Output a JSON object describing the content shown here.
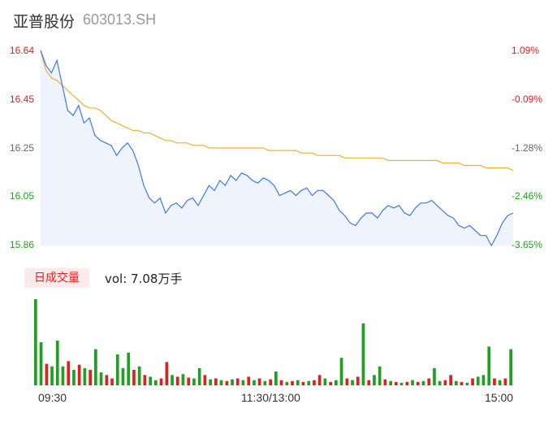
{
  "header": {
    "name": "亚普股份",
    "code": "603013.SH"
  },
  "badge_label": "日成交量",
  "volume_label": "vol: 7.08万手",
  "colors": {
    "price_line": "#3c78e6",
    "avg_line": "#f0b030",
    "up": "#e02020",
    "down": "#20a020"
  },
  "chart_data": {
    "type": "line",
    "y_ticks_left": [
      "16.64",
      "16.45",
      "16.25",
      "16.05",
      "15.86"
    ],
    "y_ticks_right": [
      "1.09%",
      "-0.09%",
      "-1.28%",
      "-2.46%",
      "-3.65%"
    ],
    "ylim": [
      15.86,
      16.64
    ],
    "x_ticks": [
      "09:30",
      "11:30/13:00",
      "15:00"
    ],
    "series": [
      {
        "key": "price",
        "values": [
          16.64,
          16.58,
          16.55,
          16.6,
          16.5,
          16.4,
          16.38,
          16.42,
          16.35,
          16.37,
          16.3,
          16.28,
          16.27,
          16.26,
          16.22,
          16.25,
          16.27,
          16.24,
          16.18,
          16.1,
          16.05,
          16.03,
          16.05,
          15.99,
          16.02,
          16.03,
          16.01,
          16.04,
          16.05,
          16.02,
          16.06,
          16.1,
          16.08,
          16.12,
          16.1,
          16.14,
          16.12,
          16.15,
          16.14,
          16.12,
          16.11,
          16.13,
          16.12,
          16.1,
          16.06,
          16.07,
          16.08,
          16.06,
          16.08,
          16.09,
          16.06,
          16.08,
          16.08,
          16.06,
          16.04,
          16.0,
          15.98,
          15.95,
          15.94,
          15.97,
          15.99,
          15.99,
          15.97,
          16.0,
          16.02,
          16.01,
          16.02,
          15.99,
          15.98,
          16.01,
          16.03,
          16.03,
          16.04,
          16.02,
          16.0,
          15.98,
          15.97,
          15.94,
          15.93,
          15.94,
          15.92,
          15.9,
          15.9,
          15.86,
          15.9,
          15.95,
          15.98,
          15.99
        ]
      },
      {
        "key": "average",
        "values": [
          16.64,
          16.56,
          16.53,
          16.52,
          16.5,
          16.48,
          16.46,
          16.44,
          16.42,
          16.41,
          16.41,
          16.4,
          16.38,
          16.36,
          16.35,
          16.34,
          16.33,
          16.32,
          16.32,
          16.31,
          16.31,
          16.3,
          16.29,
          16.28,
          16.28,
          16.27,
          16.27,
          16.27,
          16.26,
          16.26,
          16.26,
          16.25,
          16.25,
          16.25,
          16.25,
          16.25,
          16.25,
          16.25,
          16.25,
          16.25,
          16.25,
          16.25,
          16.24,
          16.24,
          16.24,
          16.24,
          16.24,
          16.24,
          16.23,
          16.23,
          16.23,
          16.22,
          16.22,
          16.22,
          16.22,
          16.22,
          16.21,
          16.21,
          16.21,
          16.21,
          16.21,
          16.21,
          16.21,
          16.21,
          16.2,
          16.2,
          16.2,
          16.2,
          16.2,
          16.2,
          16.2,
          16.2,
          16.2,
          16.2,
          16.19,
          16.19,
          16.19,
          16.19,
          16.18,
          16.18,
          16.18,
          16.18,
          16.17,
          16.17,
          16.17,
          16.17,
          16.17,
          16.16
        ]
      }
    ],
    "volume_bars": [
      {
        "v": 100,
        "d": "down"
      },
      {
        "v": 50,
        "d": "down"
      },
      {
        "v": 25,
        "d": "up"
      },
      {
        "v": 22,
        "d": "down"
      },
      {
        "v": 52,
        "d": "down"
      },
      {
        "v": 22,
        "d": "down"
      },
      {
        "v": 28,
        "d": "up"
      },
      {
        "v": 18,
        "d": "down"
      },
      {
        "v": 24,
        "d": "up"
      },
      {
        "v": 20,
        "d": "down"
      },
      {
        "v": 18,
        "d": "up"
      },
      {
        "v": 42,
        "d": "down"
      },
      {
        "v": 15,
        "d": "down"
      },
      {
        "v": 12,
        "d": "up"
      },
      {
        "v": 8,
        "d": "up"
      },
      {
        "v": 36,
        "d": "down"
      },
      {
        "v": 20,
        "d": "down"
      },
      {
        "v": 38,
        "d": "down"
      },
      {
        "v": 18,
        "d": "up"
      },
      {
        "v": 22,
        "d": "down"
      },
      {
        "v": 12,
        "d": "up"
      },
      {
        "v": 10,
        "d": "down"
      },
      {
        "v": 6,
        "d": "down"
      },
      {
        "v": 8,
        "d": "up"
      },
      {
        "v": 27,
        "d": "up"
      },
      {
        "v": 12,
        "d": "down"
      },
      {
        "v": 10,
        "d": "up"
      },
      {
        "v": 13,
        "d": "down"
      },
      {
        "v": 9,
        "d": "up"
      },
      {
        "v": 8,
        "d": "down"
      },
      {
        "v": 20,
        "d": "down"
      },
      {
        "v": 12,
        "d": "up"
      },
      {
        "v": 7,
        "d": "down"
      },
      {
        "v": 8,
        "d": "up"
      },
      {
        "v": 6,
        "d": "down"
      },
      {
        "v": 5,
        "d": "up"
      },
      {
        "v": 7,
        "d": "down"
      },
      {
        "v": 8,
        "d": "up"
      },
      {
        "v": 6,
        "d": "down"
      },
      {
        "v": 10,
        "d": "up"
      },
      {
        "v": 6,
        "d": "down"
      },
      {
        "v": 8,
        "d": "up"
      },
      {
        "v": 5,
        "d": "down"
      },
      {
        "v": 7,
        "d": "up"
      },
      {
        "v": 16,
        "d": "down"
      },
      {
        "v": 6,
        "d": "up"
      },
      {
        "v": 4,
        "d": "down"
      },
      {
        "v": 5,
        "d": "up"
      },
      {
        "v": 6,
        "d": "down"
      },
      {
        "v": 4,
        "d": "up"
      },
      {
        "v": 5,
        "d": "down"
      },
      {
        "v": 6,
        "d": "up"
      },
      {
        "v": 12,
        "d": "up"
      },
      {
        "v": 8,
        "d": "down"
      },
      {
        "v": 4,
        "d": "up"
      },
      {
        "v": 6,
        "d": "down"
      },
      {
        "v": 32,
        "d": "down"
      },
      {
        "v": 8,
        "d": "up"
      },
      {
        "v": 6,
        "d": "down"
      },
      {
        "v": 10,
        "d": "up"
      },
      {
        "v": 72,
        "d": "down"
      },
      {
        "v": 6,
        "d": "up"
      },
      {
        "v": 12,
        "d": "down"
      },
      {
        "v": 22,
        "d": "down"
      },
      {
        "v": 7,
        "d": "up"
      },
      {
        "v": 5,
        "d": "down"
      },
      {
        "v": 4,
        "d": "up"
      },
      {
        "v": 3,
        "d": "down"
      },
      {
        "v": 4,
        "d": "up"
      },
      {
        "v": 6,
        "d": "down"
      },
      {
        "v": 4,
        "d": "up"
      },
      {
        "v": 5,
        "d": "down"
      },
      {
        "v": 8,
        "d": "up"
      },
      {
        "v": 20,
        "d": "down"
      },
      {
        "v": 5,
        "d": "down"
      },
      {
        "v": 6,
        "d": "up"
      },
      {
        "v": 12,
        "d": "up"
      },
      {
        "v": 5,
        "d": "down"
      },
      {
        "v": 4,
        "d": "up"
      },
      {
        "v": 3,
        "d": "down"
      },
      {
        "v": 8,
        "d": "up"
      },
      {
        "v": 10,
        "d": "down"
      },
      {
        "v": 12,
        "d": "down"
      },
      {
        "v": 45,
        "d": "down"
      },
      {
        "v": 8,
        "d": "up"
      },
      {
        "v": 6,
        "d": "down"
      },
      {
        "v": 8,
        "d": "up"
      },
      {
        "v": 42,
        "d": "down"
      }
    ]
  }
}
